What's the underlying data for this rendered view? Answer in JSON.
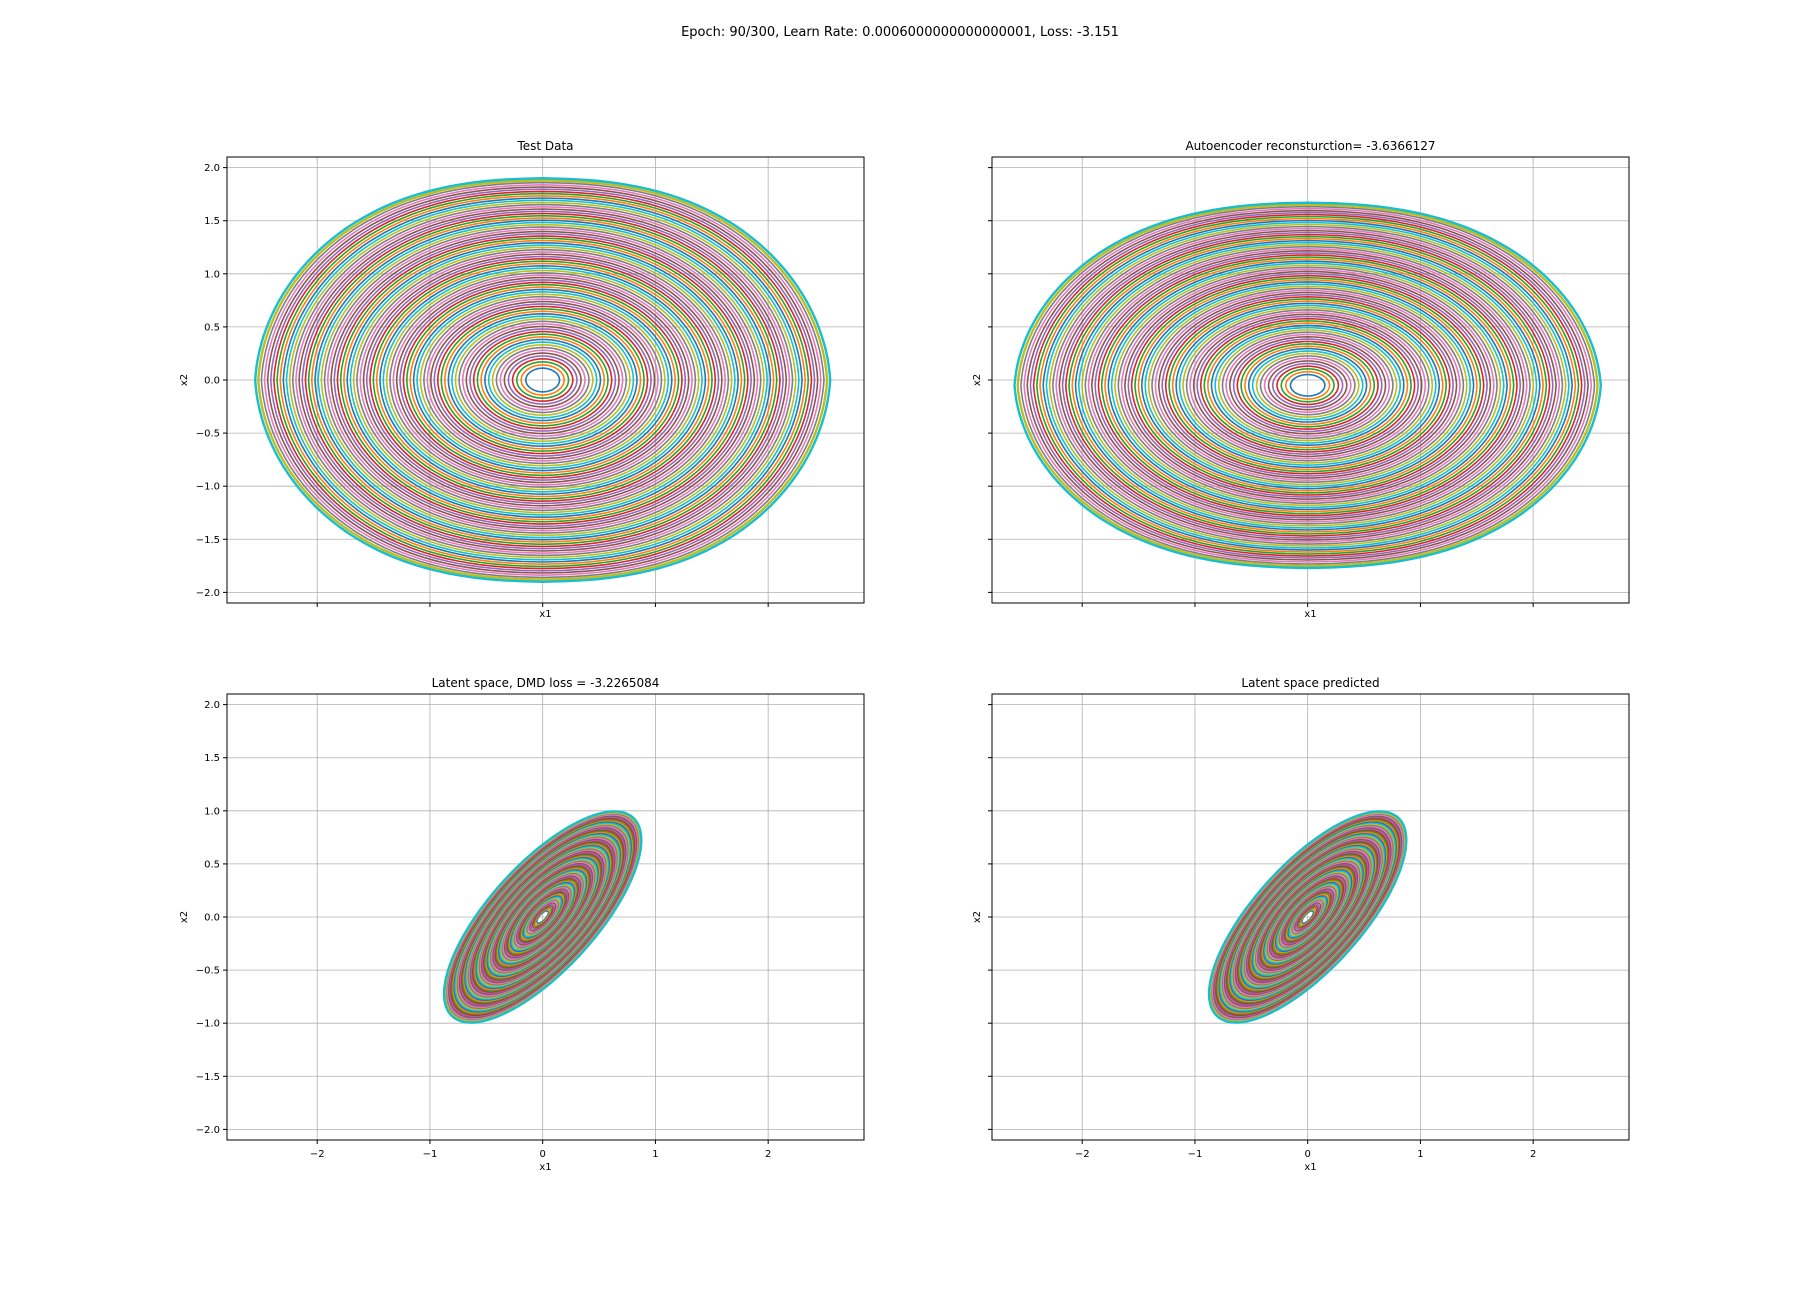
{
  "suptitle": "Epoch: 90/300, Learn Rate: 0.0006000000000000001, Loss: -3.151",
  "palette": [
    "#1f77b4",
    "#ff7f0e",
    "#2ca02c",
    "#d62728",
    "#9467bd",
    "#8c564b",
    "#e377c2",
    "#7f7f7f",
    "#bcbd22",
    "#17becf"
  ],
  "chart_data": [
    {
      "type": "line",
      "title": "Test Data",
      "xlabel": "x1",
      "ylabel": "x2",
      "xlim": [
        -2.8,
        2.85
      ],
      "ylim": [
        -2.1,
        2.1
      ],
      "xticks": [
        -2,
        -1,
        0,
        1,
        2
      ],
      "yticks": [
        -2.0,
        -1.5,
        -1.0,
        -0.5,
        0.0,
        0.5,
        1.0,
        1.5,
        2.0
      ],
      "show_xticklabels": false,
      "show_yticklabels": true,
      "grid": true,
      "orbits": {
        "shape": "pendulum",
        "center": [
          0,
          0
        ],
        "outer_extent": {
          "x": 2.55,
          "y": 1.9
        },
        "count": 80
      }
    },
    {
      "type": "line",
      "title": "Autoencoder reconsturction= -3.6366127",
      "xlabel": "x1",
      "ylabel": "x2",
      "xlim": [
        -2.8,
        2.85
      ],
      "ylim": [
        -2.1,
        2.1
      ],
      "xticks": [
        -2,
        -1,
        0,
        1,
        2
      ],
      "yticks": [
        -2.0,
        -1.5,
        -1.0,
        -0.5,
        0.0,
        0.5,
        1.0,
        1.5,
        2.0
      ],
      "show_xticklabels": false,
      "show_yticklabels": false,
      "grid": true,
      "orbits": {
        "shape": "pendulum",
        "center": [
          0,
          -0.05
        ],
        "outer_extent": {
          "x": 2.6,
          "y": 1.72
        },
        "count": 80
      }
    },
    {
      "type": "line",
      "title": "Latent space, DMD loss = -3.2265084",
      "xlabel": "x1",
      "ylabel": "x2",
      "xlim": [
        -2.8,
        2.85
      ],
      "ylim": [
        -2.1,
        2.1
      ],
      "xticks": [
        -2,
        -1,
        0,
        1,
        2
      ],
      "yticks": [
        -2.0,
        -1.5,
        -1.0,
        -0.5,
        0.0,
        0.5,
        1.0,
        1.5,
        2.0
      ],
      "show_xticklabels": true,
      "show_yticklabels": true,
      "grid": true,
      "orbits": {
        "shape": "tilted-ellipse",
        "center": [
          0,
          0
        ],
        "outer_extent": {
          "x": 1.15,
          "y": 1.28
        },
        "tilt_deg": 50,
        "count": 80
      }
    },
    {
      "type": "line",
      "title": "Latent space predicted",
      "xlabel": "x1",
      "ylabel": "x2",
      "xlim": [
        -2.8,
        2.85
      ],
      "ylim": [
        -2.1,
        2.1
      ],
      "xticks": [
        -2,
        -1,
        0,
        1,
        2
      ],
      "yticks": [
        -2.0,
        -1.5,
        -1.0,
        -0.5,
        0.0,
        0.5,
        1.0,
        1.5,
        2.0
      ],
      "show_xticklabels": true,
      "show_yticklabels": false,
      "grid": true,
      "orbits": {
        "shape": "tilted-ellipse",
        "center": [
          0,
          0
        ],
        "outer_extent": {
          "x": 1.15,
          "y": 1.28
        },
        "tilt_deg": 50,
        "count": 80
      }
    }
  ]
}
